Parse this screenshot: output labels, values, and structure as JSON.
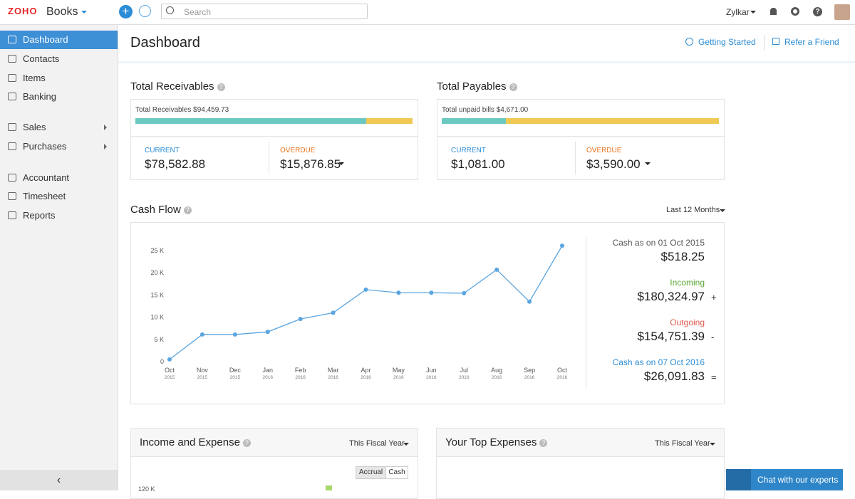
{
  "topbar": {
    "logo": "ZOHO",
    "brand": "Books",
    "search": "Search",
    "org": "Zylkar"
  },
  "sidebar": {
    "items": [
      "Dashboard",
      "Contacts",
      "Items",
      "Banking",
      "Sales",
      "Purchases",
      "Accountant",
      "Timesheet",
      "Reports"
    ]
  },
  "header": {
    "title": "Dashboard",
    "links": [
      "Getting Started",
      "Refer a Friend"
    ]
  },
  "receivables": {
    "title": "Total Receivables",
    "summary": "Total Receivables $94,459.73",
    "current_label": "CURRENT",
    "current": "$78,582.88",
    "overdue_label": "OVERDUE",
    "overdue": "$15,876.85"
  },
  "payables": {
    "title": "Total Payables",
    "summary": "Total unpaid bills $4,671.00",
    "current_label": "CURRENT",
    "current": "$1,081.00",
    "overdue_label": "OVERDUE",
    "overdue": "$3,590.00"
  },
  "cash_flow": {
    "title": "Cash Flow",
    "period": "Last 12 Months",
    "summary": [
      {
        "label": "Cash as on 01 Oct 2015",
        "value": "$518.25",
        "sign": ""
      },
      {
        "label": "Incoming",
        "value": "$180,324.97",
        "sign": "+"
      },
      {
        "label": "Outgoing",
        "value": "$154,751.39",
        "sign": "-"
      },
      {
        "label": "Cash as on 07 Oct 2016",
        "value": "$26,091.83",
        "sign": "="
      }
    ]
  },
  "chart_data": {
    "type": "line",
    "color": "#5aa5e0",
    "categories": [
      "Oct",
      "Nov",
      "Dec",
      "Jan",
      "Feb",
      "Mar",
      "Apr",
      "May",
      "Jun",
      "Jul",
      "Aug",
      "Sep",
      "Oct"
    ],
    "category_years": [
      "2015",
      "2015",
      "2015",
      "2016",
      "2016",
      "2016",
      "2016",
      "2016",
      "2016",
      "2016",
      "2016",
      "2016",
      "2016"
    ],
    "values": [
      500,
      6100,
      6100,
      6700,
      9600,
      11000,
      16200,
      15500,
      15500,
      15400,
      20700,
      13500,
      26100
    ],
    "ylim": [
      0,
      27500
    ],
    "yticks": [
      0,
      {
        "value": 5000,
        "label": "5 K"
      },
      {
        "value": 10000,
        "label": "10 K"
      },
      {
        "value": 15000,
        "label": "15 K"
      },
      {
        "value": 20000,
        "label": "20 K"
      },
      {
        "value": 25000,
        "label": "25 K"
      }
    ],
    "grid": false
  },
  "income_expense": {
    "title": "Income and Expense",
    "period": "This Fiscal Year",
    "toggle": [
      "Accrual",
      "Cash"
    ],
    "ytick": "120 K"
  },
  "top_expenses": {
    "title": "Your Top Expenses",
    "period": "This Fiscal Year"
  },
  "chat": "Chat with our experts"
}
